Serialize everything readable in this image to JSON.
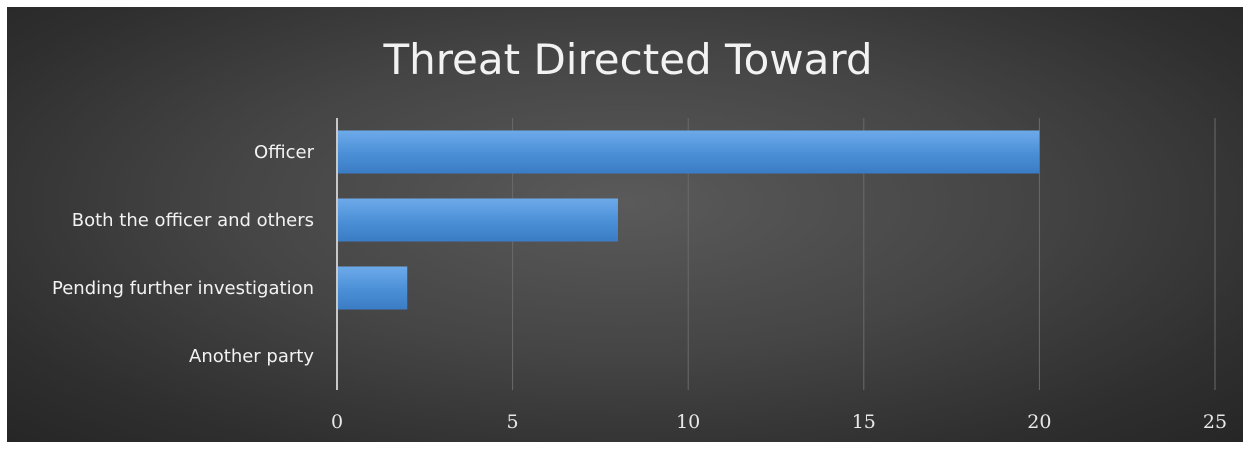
{
  "chart_data": {
    "type": "bar",
    "orientation": "horizontal",
    "title": "Threat Directed Toward",
    "xlabel": "",
    "ylabel": "",
    "categories": [
      "Officer",
      "Both the officer and others",
      "Pending further investigation",
      "Another party"
    ],
    "values": [
      20,
      8,
      2,
      0
    ],
    "xlim": [
      0,
      25
    ],
    "xticks": [
      "0",
      "5",
      "10",
      "15",
      "20",
      "25"
    ],
    "grid": true,
    "legend": "none",
    "colors": {
      "bar": "#4a8fd6",
      "bar_light": "#6eaaea",
      "bar_dark": "#3b7cc4",
      "background": "#3a3a3a",
      "text": "#f2f2f2",
      "grid": "#6a6a6a",
      "axis": "#c8c8c8"
    }
  }
}
